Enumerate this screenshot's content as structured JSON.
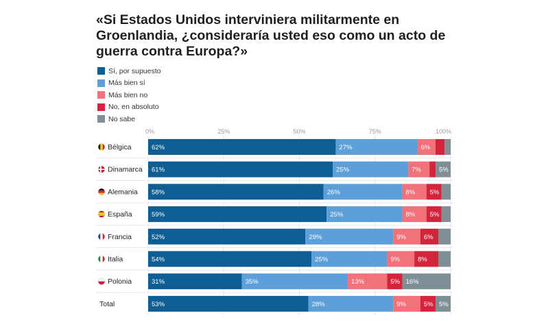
{
  "chart_data": {
    "type": "bar",
    "orientation": "horizontal",
    "stacked": true,
    "title": "«Si Estados Unidos interviniera militarmente en Groenlandia, ¿consideraría usted eso como un acto de guerra contra Europa?»",
    "xlim": [
      0,
      100
    ],
    "ticks": [
      0,
      25,
      50,
      75,
      100
    ],
    "tick_labels": [
      "0%",
      "25%",
      "50%",
      "75%",
      "100%"
    ],
    "legend_position": "top-left",
    "categories": [
      "Bélgica",
      "Dinamarca",
      "Alemania",
      "España",
      "Francia",
      "Italia",
      "Polonia",
      "Total"
    ],
    "series": [
      {
        "name": "Sí, por supuesto",
        "color": "#0e5e93",
        "values": [
          62,
          61,
          58,
          59,
          52,
          54,
          31,
          53
        ],
        "labels": [
          "62%",
          "61%",
          "58%",
          "59%",
          "52%",
          "54%",
          "31%",
          "53%"
        ]
      },
      {
        "name": "Más bien sí",
        "color": "#5d9fd8",
        "values": [
          27,
          25,
          26,
          25,
          29,
          25,
          35,
          28
        ],
        "labels": [
          "27%",
          "25%",
          "26%",
          "25%",
          "29%",
          "25%",
          "35%",
          "28%"
        ]
      },
      {
        "name": "Más bien no",
        "color": "#f2727b",
        "values": [
          6,
          7,
          8,
          8,
          9,
          9,
          13,
          9
        ],
        "labels": [
          "6%",
          "7%",
          "8%",
          "8%",
          "9%",
          "9%",
          "13%",
          "9%"
        ]
      },
      {
        "name": "No, en absoluto",
        "color": "#d3243c",
        "values": [
          3,
          2,
          5,
          5,
          6,
          8,
          5,
          5
        ],
        "labels": [
          "",
          "",
          "5%",
          "5%",
          "6%",
          "8%",
          "5%",
          "5%"
        ]
      },
      {
        "name": "No sabe",
        "color": "#808f96",
        "values": [
          2,
          5,
          3,
          3,
          4,
          4,
          16,
          5
        ],
        "labels": [
          "",
          "5%",
          "",
          "",
          "",
          "",
          "16%",
          "5%"
        ]
      }
    ],
    "flags": [
      "belgium",
      "denmark",
      "germany",
      "spain",
      "france",
      "italy",
      "poland",
      ""
    ]
  }
}
